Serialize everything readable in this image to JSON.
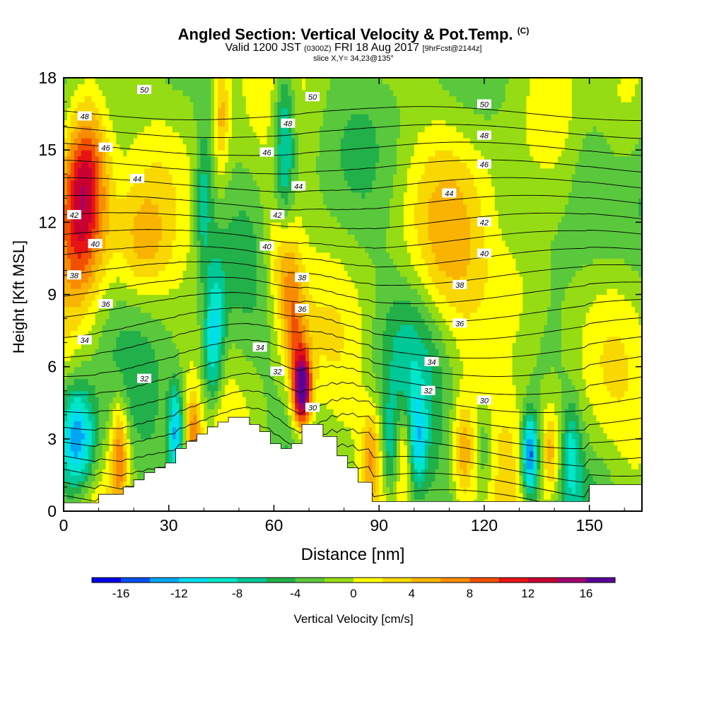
{
  "header": {
    "title": "Angled Section: Vertical Velocity & Pot.Temp.",
    "title_tag": "(C)",
    "valid_a": "Valid 1200 JST",
    "valid_b": "(0300Z)",
    "valid_c": "FRI 18 Aug 2017",
    "valid_d": "[9hrFcst@2144z]",
    "slice": "slice X,Y= 34,23@135°"
  },
  "chart_data": {
    "type": "heatmap",
    "xlabel": "Distance [nm]",
    "ylabel": "Height [Kft MSL]",
    "xlim": [
      0,
      165
    ],
    "ylim": [
      0,
      18
    ],
    "x_ticks": [
      0,
      30,
      60,
      90,
      120,
      150
    ],
    "y_ticks": [
      0,
      3,
      6,
      9,
      12,
      15,
      18
    ],
    "colorbar": {
      "label": "Vertical Velocity [cm/s]",
      "ticks": [
        -16,
        -12,
        -8,
        -4,
        0,
        4,
        8,
        12,
        16
      ],
      "levels": [
        -18,
        -16,
        -14,
        -12,
        -10,
        -8,
        -6,
        -4,
        -2,
        0,
        2,
        4,
        6,
        8,
        10,
        12,
        14,
        16,
        18
      ],
      "colors": [
        "#0000e6",
        "#0050f0",
        "#00a6f2",
        "#00dcf0",
        "#00e6c8",
        "#00c896",
        "#22b04a",
        "#5ac83c",
        "#96dc14",
        "#ffff00",
        "#f8d800",
        "#f8b400",
        "#f88c00",
        "#f05000",
        "#e61414",
        "#c80032",
        "#a0006e",
        "#5a0096"
      ]
    },
    "terrain": [
      [
        0,
        0.35
      ],
      [
        10,
        0.35
      ],
      [
        10,
        0.7
      ],
      [
        14,
        0.7
      ],
      [
        14,
        0.7
      ],
      [
        17,
        0.7
      ],
      [
        17,
        1.0
      ],
      [
        20,
        1.0
      ],
      [
        20,
        1.3
      ],
      [
        23,
        1.3
      ],
      [
        23,
        1.6
      ],
      [
        26,
        1.6
      ],
      [
        26,
        1.8
      ],
      [
        29,
        1.8
      ],
      [
        29,
        2.0
      ],
      [
        32,
        2.0
      ],
      [
        32,
        2.6
      ],
      [
        35,
        2.6
      ],
      [
        35,
        2.9
      ],
      [
        38,
        2.9
      ],
      [
        38,
        3.2
      ],
      [
        41,
        3.2
      ],
      [
        41,
        3.5
      ],
      [
        44,
        3.5
      ],
      [
        44,
        3.7
      ],
      [
        47,
        3.7
      ],
      [
        47,
        3.9
      ],
      [
        53,
        3.9
      ],
      [
        53,
        3.6
      ],
      [
        56,
        3.6
      ],
      [
        56,
        3.3
      ],
      [
        59,
        3.3
      ],
      [
        59,
        2.8
      ],
      [
        62,
        2.8
      ],
      [
        62,
        2.6
      ],
      [
        65,
        2.6
      ],
      [
        65,
        2.8
      ],
      [
        68,
        2.8
      ],
      [
        68,
        3.6
      ],
      [
        74,
        3.6
      ],
      [
        74,
        3.1
      ],
      [
        78,
        3.1
      ],
      [
        78,
        2.3
      ],
      [
        81,
        2.3
      ],
      [
        81,
        1.8
      ],
      [
        84,
        1.8
      ],
      [
        84,
        1.2
      ],
      [
        88,
        1.2
      ],
      [
        88,
        0.4
      ],
      [
        150,
        0.4
      ],
      [
        150,
        1.1
      ],
      [
        165,
        1.1
      ]
    ],
    "theta_contour_labels": [
      {
        "v": 50,
        "x": 23,
        "y": 17.5
      },
      {
        "v": 48,
        "x": 6,
        "y": 16.4
      },
      {
        "v": 46,
        "x": 12,
        "y": 15.1
      },
      {
        "v": 44,
        "x": 21,
        "y": 13.8
      },
      {
        "v": 42,
        "x": 3,
        "y": 12.3
      },
      {
        "v": 40,
        "x": 9,
        "y": 11.1
      },
      {
        "v": 38,
        "x": 3,
        "y": 9.8
      },
      {
        "v": 36,
        "x": 12,
        "y": 8.6
      },
      {
        "v": 34,
        "x": 6,
        "y": 7.1
      },
      {
        "v": 32,
        "x": 23,
        "y": 5.5
      },
      {
        "v": 50,
        "x": 71,
        "y": 17.2
      },
      {
        "v": 48,
        "x": 64,
        "y": 16.1
      },
      {
        "v": 46,
        "x": 58,
        "y": 14.9
      },
      {
        "v": 44,
        "x": 67,
        "y": 13.5
      },
      {
        "v": 42,
        "x": 61,
        "y": 12.3
      },
      {
        "v": 40,
        "x": 58,
        "y": 11.0
      },
      {
        "v": 38,
        "x": 68,
        "y": 9.7
      },
      {
        "v": 36,
        "x": 68,
        "y": 8.4
      },
      {
        "v": 34,
        "x": 56,
        "y": 6.8
      },
      {
        "v": 32,
        "x": 61,
        "y": 5.8
      },
      {
        "v": 30,
        "x": 71,
        "y": 4.3
      },
      {
        "v": 50,
        "x": 120,
        "y": 16.9
      },
      {
        "v": 48,
        "x": 120,
        "y": 15.6
      },
      {
        "v": 46,
        "x": 120,
        "y": 14.4
      },
      {
        "v": 44,
        "x": 110,
        "y": 13.2
      },
      {
        "v": 42,
        "x": 120,
        "y": 12.0
      },
      {
        "v": 40,
        "x": 120,
        "y": 10.7
      },
      {
        "v": 38,
        "x": 113,
        "y": 9.4
      },
      {
        "v": 36,
        "x": 113,
        "y": 7.8
      },
      {
        "v": 34,
        "x": 105,
        "y": 6.2
      },
      {
        "v": 32,
        "x": 104,
        "y": 5.0
      },
      {
        "v": 30,
        "x": 120,
        "y": 4.6
      }
    ],
    "theta_levels": [
      28,
      29,
      30,
      31,
      32,
      33,
      34,
      35,
      36,
      37,
      38,
      39,
      40,
      41,
      42,
      43,
      44,
      45,
      46,
      47,
      48,
      49,
      50,
      51
    ]
  }
}
